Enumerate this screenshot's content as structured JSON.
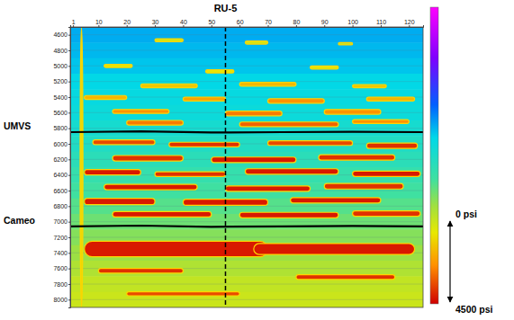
{
  "chart_data": {
    "type": "heatmap",
    "xlim": [
      0,
      125
    ],
    "xticks": [
      1,
      10,
      20,
      30,
      40,
      50,
      60,
      70,
      80,
      90,
      100,
      110,
      120
    ],
    "ylim": [
      4500,
      8100
    ],
    "yticks": [
      4600,
      4800,
      5000,
      5200,
      5400,
      5600,
      5800,
      6000,
      6200,
      6400,
      6600,
      6800,
      7000,
      7200,
      7400,
      7600,
      7800,
      8000
    ],
    "grid": true,
    "clim": [
      0,
      4500
    ],
    "cticks": [
      {
        "value": 0,
        "label": "0 psi"
      },
      {
        "value": 4500,
        "label": "4500 psi"
      }
    ],
    "bands": {
      "edges": [
        4500,
        4700,
        4900,
        5100,
        5300,
        5500,
        5700,
        5900,
        6100,
        6300,
        6500,
        6700,
        6900,
        7100,
        7300,
        7500,
        7700,
        7900,
        8100
      ],
      "values": [
        1800,
        1850,
        1900,
        2000,
        2050,
        2100,
        2200,
        2300,
        2400,
        2500,
        2600,
        2700,
        2800,
        2900,
        3000,
        3100,
        3200,
        3250
      ]
    },
    "lenses": [
      {
        "x": [
          3.5,
          4.5
        ],
        "depth": [
          4500,
          8100
        ],
        "value": 3500
      },
      {
        "x": [
          30,
          40
        ],
        "depth": [
          4650,
          4690
        ],
        "value": 3300
      },
      {
        "x": [
          62,
          70
        ],
        "depth": [
          4680,
          4720
        ],
        "value": 3300
      },
      {
        "x": [
          95,
          100
        ],
        "depth": [
          4700,
          4730
        ],
        "value": 3200
      },
      {
        "x": [
          12,
          22
        ],
        "depth": [
          4980,
          5020
        ],
        "value": 3400
      },
      {
        "x": [
          48,
          58
        ],
        "depth": [
          5050,
          5090
        ],
        "value": 3400
      },
      {
        "x": [
          85,
          95
        ],
        "depth": [
          5000,
          5040
        ],
        "value": 3400
      },
      {
        "x": [
          25,
          45
        ],
        "depth": [
          5230,
          5280
        ],
        "value": 3600
      },
      {
        "x": [
          60,
          80
        ],
        "depth": [
          5210,
          5260
        ],
        "value": 3700
      },
      {
        "x": [
          100,
          112
        ],
        "depth": [
          5240,
          5280
        ],
        "value": 3600
      },
      {
        "x": [
          5,
          20
        ],
        "depth": [
          5380,
          5430
        ],
        "value": 3700
      },
      {
        "x": [
          40,
          55
        ],
        "depth": [
          5400,
          5450
        ],
        "value": 3800
      },
      {
        "x": [
          70,
          90
        ],
        "depth": [
          5420,
          5480
        ],
        "value": 3900
      },
      {
        "x": [
          105,
          122
        ],
        "depth": [
          5400,
          5450
        ],
        "value": 3700
      },
      {
        "x": [
          15,
          35
        ],
        "depth": [
          5560,
          5610
        ],
        "value": 3900
      },
      {
        "x": [
          55,
          75
        ],
        "depth": [
          5580,
          5640
        ],
        "value": 4000
      },
      {
        "x": [
          90,
          110
        ],
        "depth": [
          5560,
          5620
        ],
        "value": 3900
      },
      {
        "x": [
          20,
          40
        ],
        "depth": [
          5700,
          5760
        ],
        "value": 4000
      },
      {
        "x": [
          60,
          95
        ],
        "depth": [
          5720,
          5780
        ],
        "value": 4100
      },
      {
        "x": [
          100,
          120
        ],
        "depth": [
          5690,
          5740
        ],
        "value": 3900
      },
      {
        "x": [
          8,
          30
        ],
        "depth": [
          5950,
          6010
        ],
        "value": 4200
      },
      {
        "x": [
          35,
          60
        ],
        "depth": [
          5980,
          6040
        ],
        "value": 4300
      },
      {
        "x": [
          70,
          100
        ],
        "depth": [
          5960,
          6020
        ],
        "value": 4200
      },
      {
        "x": [
          105,
          123
        ],
        "depth": [
          5990,
          6060
        ],
        "value": 4300
      },
      {
        "x": [
          15,
          40
        ],
        "depth": [
          6150,
          6220
        ],
        "value": 4300
      },
      {
        "x": [
          50,
          80
        ],
        "depth": [
          6170,
          6240
        ],
        "value": 4400
      },
      {
        "x": [
          88,
          115
        ],
        "depth": [
          6140,
          6210
        ],
        "value": 4300
      },
      {
        "x": [
          5,
          25
        ],
        "depth": [
          6330,
          6400
        ],
        "value": 4400
      },
      {
        "x": [
          30,
          55
        ],
        "depth": [
          6360,
          6420
        ],
        "value": 4300
      },
      {
        "x": [
          62,
          95
        ],
        "depth": [
          6320,
          6390
        ],
        "value": 4400
      },
      {
        "x": [
          100,
          124
        ],
        "depth": [
          6350,
          6420
        ],
        "value": 4400
      },
      {
        "x": [
          12,
          45
        ],
        "depth": [
          6520,
          6590
        ],
        "value": 4400
      },
      {
        "x": [
          55,
          85
        ],
        "depth": [
          6540,
          6610
        ],
        "value": 4400
      },
      {
        "x": [
          90,
          118
        ],
        "depth": [
          6510,
          6580
        ],
        "value": 4300
      },
      {
        "x": [
          5,
          30
        ],
        "depth": [
          6700,
          6780
        ],
        "value": 4400
      },
      {
        "x": [
          40,
          70
        ],
        "depth": [
          6710,
          6790
        ],
        "value": 4400
      },
      {
        "x": [
          78,
          110
        ],
        "depth": [
          6690,
          6760
        ],
        "value": 4400
      },
      {
        "x": [
          15,
          50
        ],
        "depth": [
          6870,
          6940
        ],
        "value": 4400
      },
      {
        "x": [
          60,
          95
        ],
        "depth": [
          6880,
          6950
        ],
        "value": 4400
      },
      {
        "x": [
          100,
          124
        ],
        "depth": [
          6860,
          6930
        ],
        "value": 4300
      },
      {
        "x": [
          5,
          70
        ],
        "depth": [
          7250,
          7450
        ],
        "value": 4400
      },
      {
        "x": [
          65,
          122
        ],
        "depth": [
          7280,
          7420
        ],
        "value": 4400
      },
      {
        "x": [
          10,
          40
        ],
        "depth": [
          7600,
          7660
        ],
        "value": 4300
      },
      {
        "x": [
          80,
          115
        ],
        "depth": [
          7680,
          7740
        ],
        "value": 4300
      },
      {
        "x": [
          20,
          60
        ],
        "depth": [
          7900,
          7950
        ],
        "value": 4200
      }
    ],
    "horizons": [
      {
        "name": "UMVS",
        "x": [
          0,
          25,
          50,
          75,
          100,
          125
        ],
        "depth": [
          5850,
          5840,
          5855,
          5850,
          5845,
          5850
        ]
      },
      {
        "name": "Cameo",
        "x": [
          0,
          25,
          50,
          75,
          100,
          125
        ],
        "depth": [
          7060,
          7050,
          7065,
          7060,
          7055,
          7060
        ]
      }
    ],
    "wells": [
      {
        "name": "RU-5",
        "x": 55
      }
    ]
  }
}
